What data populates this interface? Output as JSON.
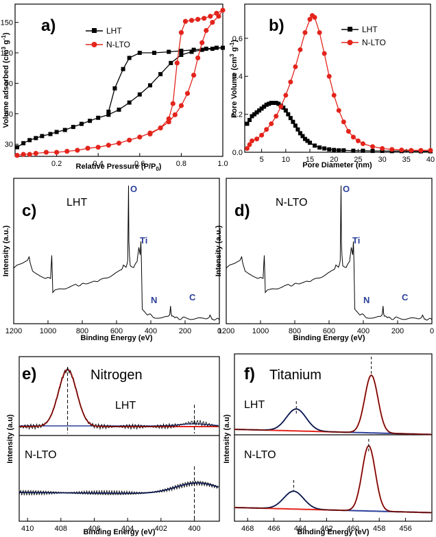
{
  "chart_data": [
    {
      "type": "line",
      "panel": "a)",
      "xlabel": "Relative Pressure (P/P",
      "xlabel_sub": "0",
      "xlabel_end": ")",
      "ylabel": "Volume adsorbed (cm",
      "ylabel_sup1": "3",
      "ylabel_mid": " g",
      "ylabel_sup2": "-1",
      "ylabel_end": ")",
      "xlim": [
        0.0,
        1.0
      ],
      "ylim": [
        18,
        168
      ],
      "xticks": [
        "0.2",
        "0.4",
        "0.6",
        "0.8",
        "1.0"
      ],
      "yticks": [
        "30",
        "60",
        "90",
        "120",
        "150"
      ],
      "legend": "top-left",
      "series": [
        {
          "name": "LHT",
          "color": "#000000",
          "marker": "square",
          "x": [
            0.01,
            0.04,
            0.07,
            0.1,
            0.13,
            0.17,
            0.2,
            0.24,
            0.28,
            0.32,
            0.36,
            0.4,
            0.45,
            0.5,
            0.55,
            0.6,
            0.65,
            0.7,
            0.75,
            0.8,
            0.85,
            0.9,
            0.95,
            1.0,
            0.97,
            0.92,
            0.86,
            0.8,
            0.74,
            0.67,
            0.6,
            0.55,
            0.52,
            0.48,
            0.45
          ],
          "y": [
            27,
            31,
            34,
            36,
            38,
            40,
            42,
            44,
            47,
            50,
            53,
            56,
            59,
            64,
            71,
            79,
            88,
            99,
            110,
            118,
            121,
            123,
            124,
            125,
            125,
            124,
            123,
            122,
            121,
            120,
            120,
            115,
            104,
            85,
            62
          ]
        },
        {
          "name": "N-LTO",
          "color": "#e3241c",
          "marker": "circle",
          "x": [
            0.01,
            0.04,
            0.07,
            0.1,
            0.15,
            0.2,
            0.25,
            0.3,
            0.35,
            0.4,
            0.45,
            0.5,
            0.55,
            0.6,
            0.65,
            0.7,
            0.74,
            0.77,
            0.8,
            0.83,
            0.86,
            0.88,
            0.9,
            0.92,
            0.95,
            0.98,
            1.0,
            0.97,
            0.94,
            0.91,
            0.88,
            0.85,
            0.82,
            0.8,
            0.78,
            0.76,
            0.74,
            0.7,
            0.65
          ],
          "y": [
            19,
            20,
            20,
            21,
            22,
            22,
            23,
            24,
            26,
            27,
            29,
            31,
            34,
            37,
            41,
            46,
            52,
            59,
            68,
            80,
            98,
            115,
            130,
            142,
            150,
            156,
            162,
            159,
            156,
            154,
            153,
            152,
            151,
            140,
            110,
            70,
            55,
            46,
            40
          ]
        }
      ]
    },
    {
      "type": "line",
      "panel": "b)",
      "xlabel": "Pore Diameter (nm)",
      "ylabel": "Pore Volume (cm",
      "ylabel_sup1": "3",
      "ylabel_mid": " g",
      "ylabel_sup2": "-1",
      "ylabel_end": ")",
      "xlim": [
        1.5,
        40
      ],
      "ylim": [
        0.0,
        0.78
      ],
      "xticks": [
        "5",
        "10",
        "15",
        "20",
        "25",
        "30",
        "35",
        "40"
      ],
      "yticks": [
        "0.0",
        "0.2",
        "0.4",
        "0.6"
      ],
      "legend": "top-right",
      "series": [
        {
          "name": "LHT",
          "color": "#000000",
          "marker": "square",
          "x": [
            2,
            2.5,
            3,
            3.5,
            4,
            4.5,
            5,
            5.5,
            6,
            6.5,
            7,
            7.5,
            8,
            8.5,
            9,
            9.5,
            10,
            10.5,
            11,
            11.5,
            12,
            12.5,
            13,
            13.5,
            14,
            14.5,
            15,
            16,
            17,
            18,
            19,
            20,
            21,
            22,
            24,
            26,
            28,
            30,
            32,
            34,
            36,
            38,
            40
          ],
          "y": [
            0.15,
            0.17,
            0.19,
            0.2,
            0.21,
            0.22,
            0.23,
            0.24,
            0.25,
            0.255,
            0.26,
            0.26,
            0.26,
            0.255,
            0.245,
            0.235,
            0.22,
            0.2,
            0.18,
            0.16,
            0.14,
            0.12,
            0.1,
            0.085,
            0.07,
            0.06,
            0.05,
            0.035,
            0.025,
            0.02,
            0.015,
            0.012,
            0.01,
            0.01,
            0.008,
            0.008,
            0.007,
            0.007,
            0.006,
            0.006,
            0.006,
            0.005,
            0.005
          ]
        },
        {
          "name": "N-LTO",
          "color": "#e3241c",
          "marker": "circle",
          "x": [
            2,
            2.5,
            3,
            4,
            5,
            6,
            7,
            8,
            9,
            10,
            11,
            12,
            13,
            14,
            15,
            15.5,
            16,
            17,
            18,
            19,
            20,
            21,
            22,
            23,
            24,
            25,
            26,
            28,
            30,
            32,
            34,
            36,
            38,
            40
          ],
          "y": [
            0.02,
            0.04,
            0.06,
            0.07,
            0.09,
            0.12,
            0.15,
            0.19,
            0.24,
            0.3,
            0.37,
            0.45,
            0.54,
            0.63,
            0.7,
            0.72,
            0.71,
            0.63,
            0.52,
            0.4,
            0.3,
            0.22,
            0.16,
            0.11,
            0.08,
            0.06,
            0.045,
            0.03,
            0.02,
            0.015,
            0.012,
            0.01,
            0.01,
            0.01
          ]
        }
      ]
    },
    {
      "type": "line",
      "panel": "c)",
      "sample": "LHT",
      "xlabel": "Binding Energy (eV)",
      "ylabel": "Intensity (a.u.)",
      "xlim": [
        1200,
        0
      ],
      "xticks": [
        "1200",
        "1000",
        "800",
        "600",
        "400",
        "200",
        "0"
      ],
      "peaks": [
        "O",
        "Ti",
        "N",
        "C"
      ],
      "series": [
        {
          "name": "LHT",
          "color": "#000000",
          "x": [
            1200,
            1180,
            1150,
            1120,
            1110,
            1105,
            1090,
            1070,
            1050,
            1020,
            1000,
            985,
            978,
            972,
            960,
            930,
            900,
            870,
            840,
            800,
            760,
            700,
            650,
            600,
            570,
            560,
            545,
            535,
            530,
            528,
            525,
            520,
            500,
            480,
            470,
            462,
            458,
            455,
            450,
            420,
            400,
            380,
            350,
            300,
            290,
            285,
            282,
            278,
            260,
            200,
            150,
            100,
            60,
            55,
            50,
            40,
            20,
            0
          ],
          "y": [
            0.4,
            0.42,
            0.43,
            0.45,
            0.48,
            0.44,
            0.38,
            0.36,
            0.34,
            0.33,
            0.33,
            0.32,
            0.5,
            0.22,
            0.24,
            0.25,
            0.25,
            0.26,
            0.27,
            0.28,
            0.29,
            0.31,
            0.33,
            0.36,
            0.38,
            0.42,
            0.4,
            0.46,
            1.0,
            0.6,
            0.5,
            0.42,
            0.4,
            0.45,
            0.55,
            0.5,
            0.6,
            0.45,
            0.1,
            0.06,
            0.05,
            0.04,
            0.04,
            0.04,
            0.05,
            0.12,
            0.06,
            0.04,
            0.03,
            0.03,
            0.03,
            0.03,
            0.03,
            0.06,
            0.04,
            0.03,
            0.02,
            0.02
          ]
        }
      ]
    },
    {
      "type": "line",
      "panel": "d)",
      "sample": "N-LTO",
      "xlabel": "Binding Energy (eV)",
      "ylabel": "Intensity (a.u.)",
      "xlim": [
        1200,
        0
      ],
      "xticks": [
        "1200",
        "1000",
        "800",
        "600",
        "400",
        "200",
        "0"
      ],
      "peaks": [
        "O",
        "Ti",
        "N",
        "C"
      ],
      "series": [
        {
          "name": "N-LTO",
          "color": "#000000",
          "x": [
            1200,
            1180,
            1150,
            1120,
            1110,
            1105,
            1090,
            1070,
            1050,
            1020,
            1000,
            985,
            978,
            972,
            960,
            930,
            900,
            870,
            840,
            800,
            760,
            700,
            650,
            600,
            570,
            560,
            545,
            535,
            530,
            528,
            525,
            520,
            500,
            480,
            470,
            462,
            458,
            455,
            450,
            420,
            400,
            380,
            350,
            300,
            290,
            285,
            282,
            278,
            260,
            200,
            150,
            100,
            60,
            55,
            50,
            40,
            20,
            0
          ],
          "y": [
            0.4,
            0.42,
            0.43,
            0.45,
            0.48,
            0.44,
            0.38,
            0.36,
            0.34,
            0.33,
            0.33,
            0.32,
            0.5,
            0.22,
            0.24,
            0.25,
            0.25,
            0.26,
            0.27,
            0.28,
            0.29,
            0.31,
            0.33,
            0.36,
            0.38,
            0.42,
            0.4,
            0.46,
            1.0,
            0.6,
            0.5,
            0.42,
            0.4,
            0.45,
            0.55,
            0.5,
            0.6,
            0.45,
            0.1,
            0.06,
            0.05,
            0.04,
            0.04,
            0.04,
            0.05,
            0.12,
            0.06,
            0.04,
            0.03,
            0.03,
            0.03,
            0.03,
            0.03,
            0.06,
            0.04,
            0.03,
            0.02,
            0.02
          ]
        }
      ]
    },
    {
      "type": "line",
      "panel": "e)",
      "title": "Nitrogen",
      "samples": [
        "LHT",
        "N-LTO"
      ],
      "xlabel": "Binding Energy (eV)",
      "ylabel": "Intensity (a.u)",
      "xlim": [
        410.5,
        398.5
      ],
      "xticks": [
        "410",
        "408",
        "406",
        "404",
        "402",
        "400"
      ],
      "dashed_lines": [
        407.6,
        400.0
      ],
      "colors": {
        "raw": "#000000",
        "fit": "#e3241c",
        "background": "#2b3f9b"
      }
    },
    {
      "type": "line",
      "panel": "f)",
      "title": "Titanium",
      "samples": [
        "LHT",
        "N-LTO"
      ],
      "xlabel": "Binding Energy (eV)",
      "ylabel": "Intensity (a.u)",
      "xlim": [
        469,
        454
      ],
      "xticks": [
        "468",
        "466",
        "464",
        "462",
        "460",
        "458",
        "456"
      ],
      "peaks_LHT": [
        464.3,
        458.6
      ],
      "peaks_N-LTO": [
        464.5,
        458.8
      ],
      "colors": {
        "ti2p1": "#2b3f9b",
        "ti2p3": "#e3241c",
        "raw": "#000000"
      }
    }
  ]
}
